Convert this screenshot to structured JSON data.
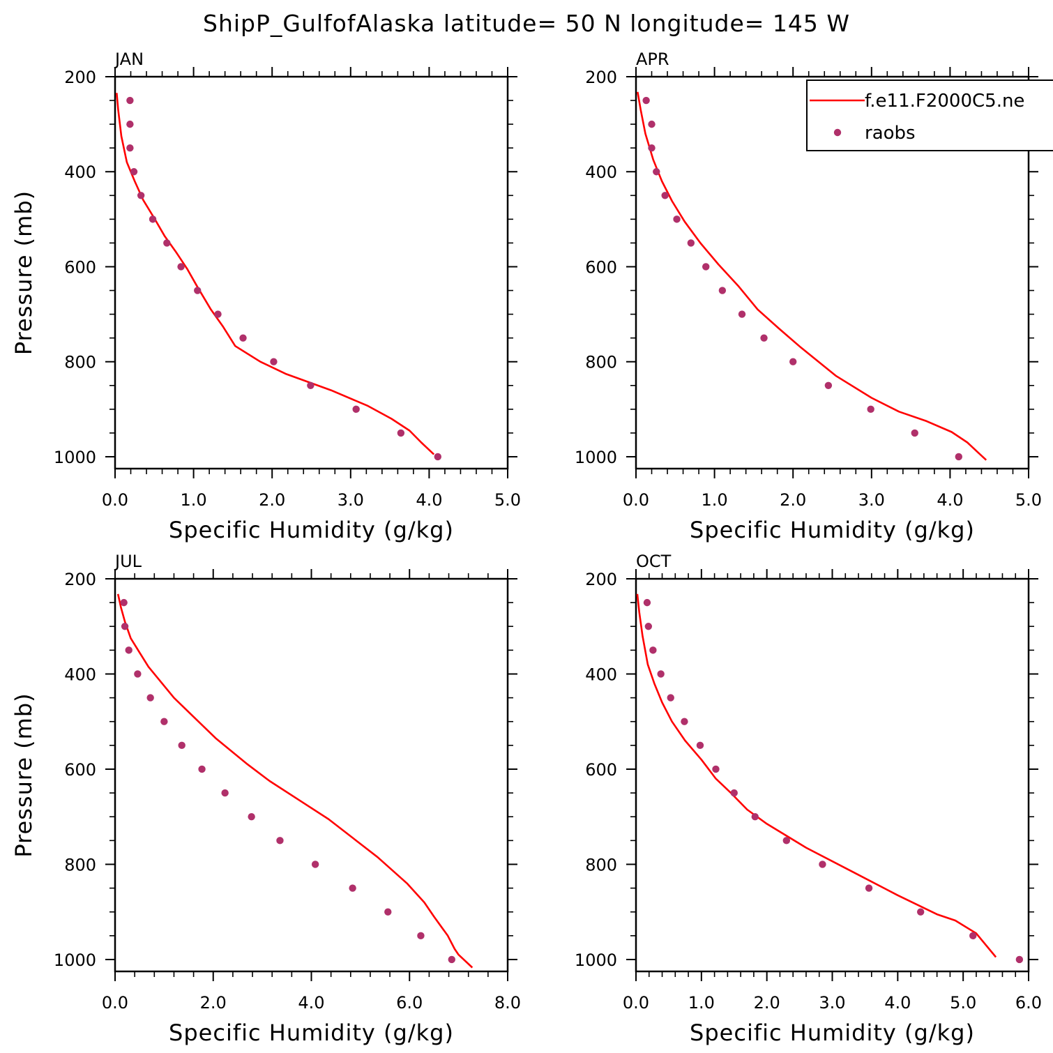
{
  "title": "ShipP_GulfofAlaska  latitude= 50 N longitude= 145 W",
  "colors": {
    "model": "#ff0000",
    "obs": "#b0306a",
    "axis": "#000000"
  },
  "legend": {
    "model_label": "f.e11.F2000C5.ne",
    "obs_label": "raobs"
  },
  "chart_data": [
    {
      "type": "line",
      "title": "JAN",
      "xlabel": "Specific Humidity (g/kg)",
      "ylabel": "Pressure (mb)",
      "xlim": [
        0,
        5
      ],
      "ylim": [
        200,
        1025
      ],
      "xticks": [
        0,
        1,
        2,
        3,
        4,
        5
      ],
      "xtick_labels": [
        "0.0",
        "1.0",
        "2.0",
        "3.0",
        "4.0",
        "5.0"
      ],
      "yticks": [
        200,
        400,
        600,
        800,
        1000
      ],
      "ytick_labels": [
        "200",
        "400",
        "600",
        "800",
        "1000"
      ],
      "series": [
        {
          "name": "f.e11.F2000C5.ne",
          "kind": "line",
          "x": [
            0.02,
            0.04,
            0.08,
            0.15,
            0.25,
            0.36,
            0.5,
            0.63,
            0.78,
            0.92,
            1.04,
            1.22,
            1.37,
            1.53,
            1.85,
            2.18,
            2.75,
            3.22,
            3.52,
            3.75,
            3.9,
            4.06
          ],
          "y": [
            234,
            270,
            325,
            380,
            420,
            460,
            498,
            535,
            570,
            605,
            640,
            690,
            725,
            767,
            800,
            826,
            860,
            893,
            920,
            945,
            970,
            995
          ]
        },
        {
          "name": "raobs",
          "kind": "scatter",
          "x": [
            0.19,
            0.19,
            0.19,
            0.24,
            0.33,
            0.48,
            0.66,
            0.84,
            1.05,
            1.31,
            1.63,
            2.02,
            2.49,
            3.07,
            3.64,
            4.11
          ],
          "y": [
            250,
            300,
            350,
            400,
            450,
            500,
            550,
            600,
            650,
            700,
            750,
            800,
            850,
            900,
            950,
            1000
          ]
        }
      ]
    },
    {
      "type": "line",
      "title": "APR",
      "xlabel": "Specific Humidity (g/kg)",
      "ylabel": "",
      "xlim": [
        0,
        5
      ],
      "ylim": [
        200,
        1025
      ],
      "xticks": [
        0,
        1,
        2,
        3,
        4,
        5
      ],
      "xtick_labels": [
        "0.0",
        "1.0",
        "2.0",
        "3.0",
        "4.0",
        "5.0"
      ],
      "yticks": [
        200,
        400,
        600,
        800,
        1000
      ],
      "ytick_labels": [
        "200",
        "400",
        "600",
        "800",
        "1000"
      ],
      "series": [
        {
          "name": "f.e11.F2000C5.ne",
          "kind": "line",
          "x": [
            0.02,
            0.06,
            0.12,
            0.22,
            0.33,
            0.46,
            0.62,
            0.82,
            1.05,
            1.3,
            1.55,
            1.82,
            2.1,
            2.55,
            3.0,
            3.35,
            3.7,
            4.02,
            4.22,
            4.35,
            4.46
          ],
          "y": [
            232,
            270,
            320,
            375,
            420,
            462,
            505,
            550,
            595,
            640,
            690,
            730,
            770,
            830,
            876,
            905,
            925,
            948,
            970,
            990,
            1007
          ]
        },
        {
          "name": "raobs",
          "kind": "scatter",
          "x": [
            0.13,
            0.2,
            0.2,
            0.26,
            0.37,
            0.52,
            0.7,
            0.89,
            1.1,
            1.35,
            1.63,
            2.0,
            2.45,
            2.99,
            3.55,
            4.11
          ],
          "y": [
            250,
            300,
            350,
            400,
            450,
            500,
            550,
            600,
            650,
            700,
            750,
            800,
            850,
            900,
            950,
            1000
          ]
        }
      ]
    },
    {
      "type": "line",
      "title": "JUL",
      "xlabel": "Specific Humidity (g/kg)",
      "ylabel": "Pressure (mb)",
      "xlim": [
        0,
        8
      ],
      "ylim": [
        200,
        1025
      ],
      "xticks": [
        0,
        2,
        4,
        6,
        8
      ],
      "xtick_labels": [
        "0.0",
        "2.0",
        "4.0",
        "6.0",
        "8.0"
      ],
      "yticks": [
        200,
        400,
        600,
        800,
        1000
      ],
      "ytick_labels": [
        "200",
        "400",
        "600",
        "800",
        "1000"
      ],
      "series": [
        {
          "name": "f.e11.F2000C5.ne",
          "kind": "line",
          "x": [
            0.06,
            0.12,
            0.2,
            0.32,
            0.5,
            0.68,
            1.2,
            1.65,
            2.05,
            2.7,
            3.15,
            3.75,
            4.35,
            4.85,
            5.35,
            5.95,
            6.3,
            6.5,
            6.78,
            6.92,
            7.0,
            7.28
          ],
          "y": [
            232,
            260,
            290,
            325,
            355,
            385,
            450,
            495,
            535,
            590,
            625,
            665,
            705,
            745,
            785,
            840,
            880,
            910,
            950,
            978,
            990,
            1017
          ]
        },
        {
          "name": "raobs",
          "kind": "scatter",
          "x": [
            0.18,
            0.2,
            0.28,
            0.46,
            0.72,
            1.0,
            1.36,
            1.77,
            2.24,
            2.78,
            3.36,
            4.08,
            4.84,
            5.56,
            6.23,
            6.86
          ],
          "y": [
            250,
            300,
            350,
            400,
            450,
            500,
            550,
            600,
            650,
            700,
            750,
            800,
            850,
            900,
            950,
            1000
          ]
        }
      ]
    },
    {
      "type": "line",
      "title": "OCT",
      "xlabel": "Specific Humidity (g/kg)",
      "ylabel": "",
      "xlim": [
        0,
        6
      ],
      "ylim": [
        200,
        1025
      ],
      "xticks": [
        0,
        1,
        2,
        3,
        4,
        5,
        6
      ],
      "xtick_labels": [
        "0.0",
        "1.0",
        "2.0",
        "3.0",
        "4.0",
        "5.0",
        "6.0"
      ],
      "yticks": [
        200,
        400,
        600,
        800,
        1000
      ],
      "ytick_labels": [
        "200",
        "400",
        "600",
        "800",
        "1000"
      ],
      "series": [
        {
          "name": "f.e11.F2000C5.ne",
          "kind": "line",
          "x": [
            0.02,
            0.05,
            0.1,
            0.18,
            0.28,
            0.4,
            0.55,
            0.75,
            1.0,
            1.22,
            1.45,
            1.7,
            2.0,
            2.6,
            3.3,
            4.0,
            4.6,
            4.88,
            5.2,
            5.5
          ],
          "y": [
            232,
            270,
            320,
            380,
            420,
            460,
            500,
            540,
            580,
            620,
            650,
            685,
            715,
            765,
            815,
            865,
            905,
            918,
            945,
            995
          ]
        },
        {
          "name": "raobs",
          "kind": "scatter",
          "x": [
            0.17,
            0.19,
            0.26,
            0.38,
            0.53,
            0.74,
            0.98,
            1.22,
            1.5,
            1.82,
            2.3,
            2.85,
            3.56,
            4.35,
            5.15,
            5.86
          ],
          "y": [
            250,
            300,
            350,
            400,
            450,
            500,
            550,
            600,
            650,
            700,
            750,
            800,
            850,
            900,
            950,
            1000
          ]
        }
      ]
    }
  ]
}
